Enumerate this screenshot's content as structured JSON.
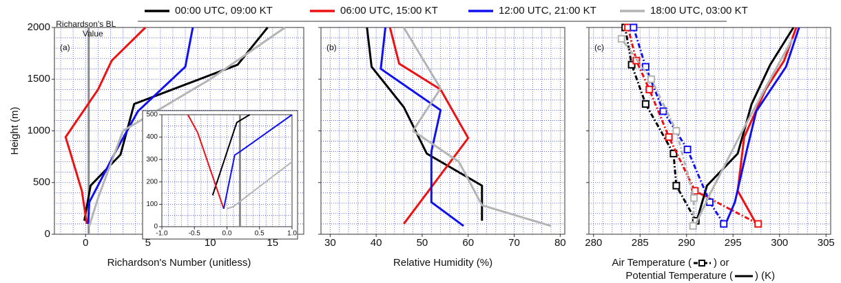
{
  "chart_data": [
    {
      "type": "line",
      "panel_label": "(a)",
      "xlabel": "Richardson's Number (unitless)",
      "ylabel": "Height (m)",
      "annotation": [
        "Richardson's BL",
        "Value"
      ],
      "critical_value": 0.25,
      "xlim": [
        -2.5,
        17.5
      ],
      "ylim": [
        0,
        2000
      ],
      "xticks": [
        0,
        5,
        10,
        15
      ],
      "yticks": [
        0,
        500,
        1000,
        1500,
        2000
      ],
      "grid_step": {
        "x": 1,
        "y": 100
      },
      "series": [
        {
          "name": "00:00 UTC, 09:00 KT",
          "color": "#000000",
          "heights": [
            130,
            470,
            770,
            1260,
            1640,
            2000
          ],
          "values": [
            -0.1,
            0.4,
            2.8,
            3.9,
            12.2,
            14.6
          ]
        },
        {
          "name": "06:00 UTC, 15:00 KT",
          "color": "#ee1111",
          "heights": [
            100,
            420,
            940,
            1400,
            1680,
            2000
          ],
          "values": [
            0.1,
            -0.3,
            -1.6,
            1.0,
            2.1,
            4.8
          ]
        },
        {
          "name": "12:00 UTC, 21:00 KT",
          "color": "#1111ee",
          "heights": [
            100,
            310,
            820,
            1190,
            1620,
            2000
          ],
          "values": [
            0.2,
            0.3,
            2.5,
            4.2,
            8.0,
            8.6
          ]
        },
        {
          "name": "18:00 UTC, 03:00 KT",
          "color": "#b4b4b4",
          "heights": [
            80,
            350,
            1000,
            1500,
            2000
          ],
          "values": [
            0.3,
            1.0,
            3.0,
            10.0,
            16.0
          ]
        }
      ]
    },
    {
      "type": "line",
      "critical_value": 0.2,
      "xlim": [
        -1,
        1
      ],
      "ylim": [
        0,
        500
      ],
      "xticks": [
        {
          "value": -1,
          "label": "-1.0"
        },
        {
          "value": -0.5,
          "label": "-0.5"
        },
        {
          "value": 0,
          "label": "0.0"
        },
        {
          "value": 0.5,
          "label": "0.5"
        },
        {
          "value": 1,
          "label": "1.0"
        }
      ],
      "yticks": [
        0,
        100,
        200,
        300,
        400,
        500
      ],
      "grid_step": {
        "x": 0.1,
        "y": 50
      },
      "series": [
        {
          "color": "#000000",
          "heights": [
            140,
            465,
            500
          ],
          "values": [
            -0.22,
            0.15,
            0.35
          ]
        },
        {
          "color": "#ee1111",
          "heights": [
            500,
            420,
            80
          ],
          "values": [
            -0.6,
            -0.45,
            -0.05
          ]
        },
        {
          "color": "#1111ee",
          "heights": [
            80,
            320,
            335,
            500
          ],
          "values": [
            -0.05,
            0.12,
            0.2,
            1.0
          ]
        },
        {
          "color": "#b4b4b4",
          "heights": [
            80,
            90,
            290
          ],
          "values": [
            0.0,
            0.1,
            1.0
          ]
        }
      ]
    },
    {
      "type": "line",
      "panel_label": "(b)",
      "xlabel": "Relative Humidity (%)",
      "xlim": [
        28,
        81
      ],
      "ylim": [
        0,
        2000
      ],
      "xticks": [
        30,
        40,
        50,
        60,
        70,
        80
      ],
      "yticks": [
        0,
        500,
        1000,
        1500,
        2000
      ],
      "grid_step": {
        "x": 2,
        "y": 100
      },
      "series": [
        {
          "color": "#000000",
          "heights": [
            130,
            470,
            780,
            1230,
            1620,
            2000
          ],
          "values": [
            63,
            63,
            51,
            46,
            39,
            38
          ]
        },
        {
          "color": "#ee1111",
          "heights": [
            100,
            930,
            1400,
            1650,
            2000
          ],
          "values": [
            46,
            60,
            54,
            45,
            43
          ]
        },
        {
          "color": "#1111ee",
          "heights": [
            80,
            310,
            800,
            1200,
            1600,
            2000
          ],
          "values": [
            59,
            52,
            52,
            54,
            41,
            42
          ]
        },
        {
          "color": "#b4b4b4",
          "heights": [
            80,
            280,
            700,
            1000,
            1410,
            2000
          ],
          "values": [
            78,
            63,
            58,
            48,
            54,
            46
          ]
        }
      ]
    },
    {
      "type": "line",
      "panel_label": "(c)",
      "xlabel": [
        "Air Temperature (",
        ") or",
        "Potential Temperature (",
        ") (K)"
      ],
      "xlim": [
        279.5,
        305.5
      ],
      "ylim": [
        0,
        2000
      ],
      "xticks": [
        280,
        285,
        290,
        295,
        300,
        305
      ],
      "yticks": [
        0,
        500,
        1000,
        1500,
        2000
      ],
      "grid_step": {
        "x": 1,
        "y": 100
      },
      "series": [
        {
          "color": "#000000",
          "heights": [
            130,
            470,
            780,
            1260,
            1640,
            2000
          ],
          "air_temperature": [
            291.0,
            288.9,
            288.6,
            285.6,
            284.1,
            283.4
          ],
          "potential_temperature": [
            291.1,
            292.2,
            295.5,
            297.0,
            299.0,
            301.5
          ]
        },
        {
          "color": "#ee1111",
          "heights": [
            100,
            420,
            940,
            1400,
            1680,
            2000
          ],
          "air_temperature": [
            297.7,
            290.9,
            288.1,
            286.0,
            284.6,
            283.7
          ],
          "potential_temperature": [
            297.5,
            295.5,
            296.2,
            298.5,
            300.5,
            301.8
          ]
        },
        {
          "color": "#1111ee",
          "heights": [
            100,
            310,
            820,
            1190,
            1620,
            2000
          ],
          "air_temperature": [
            294.0,
            292.5,
            290.1,
            287.5,
            285.6,
            284.3
          ],
          "potential_temperature": [
            294.2,
            295.2,
            296.5,
            297.5,
            300.7,
            302.1
          ]
        },
        {
          "color": "#b4b4b4",
          "heights": [
            80,
            350,
            1000,
            1500,
            1890
          ],
          "air_temperature": [
            290.7,
            290.8,
            288.9,
            286.2,
            283.0
          ],
          "potential_temperature": [
            290.9,
            292.3,
            296.0,
            299.0,
            301.4
          ]
        }
      ]
    }
  ]
}
